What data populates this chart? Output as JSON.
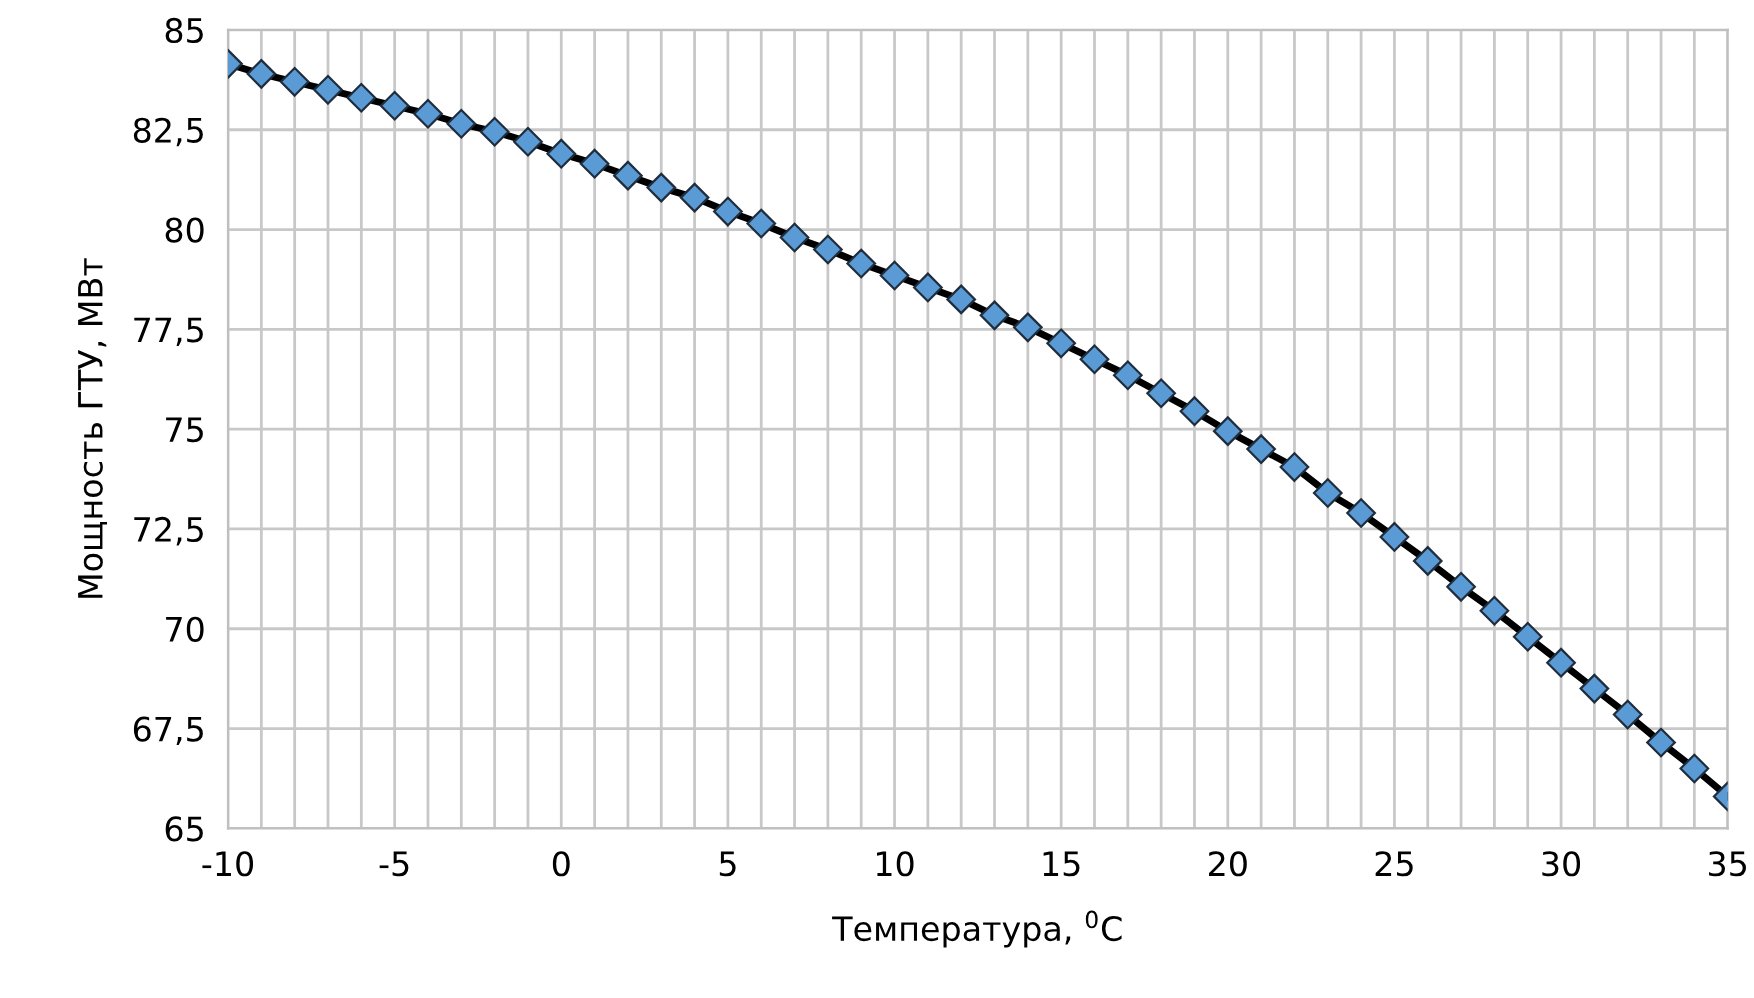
{
  "chart_data": {
    "type": "line",
    "xlabel": "Температура, $^{0}$C",
    "ylabel": "Мощность ГТУ, МВт",
    "x": [
      -10,
      -9,
      -8,
      -7,
      -6,
      -5,
      -4,
      -3,
      -2,
      -1,
      0,
      1,
      2,
      3,
      4,
      5,
      6,
      7,
      8,
      9,
      10,
      11,
      12,
      13,
      14,
      15,
      16,
      17,
      18,
      19,
      20,
      21,
      22,
      23,
      24,
      25,
      26,
      27,
      28,
      29,
      30,
      31,
      32,
      33,
      34,
      35
    ],
    "series": [
      {
        "color": "#5b9bd5",
        "values": [
          84.15,
          83.9,
          83.7,
          83.5,
          83.3,
          83.1,
          82.9,
          82.65,
          82.45,
          82.2,
          81.9,
          81.65,
          81.35,
          81.05,
          80.8,
          80.45,
          80.15,
          79.8,
          79.5,
          79.15,
          78.85,
          78.55,
          78.25,
          77.85,
          77.55,
          77.15,
          76.75,
          76.35,
          75.9,
          75.45,
          74.95,
          74.5,
          74.05,
          73.4,
          72.9,
          72.3,
          71.7,
          71.05,
          70.45,
          69.8,
          69.15,
          68.5,
          67.85,
          67.15,
          66.5,
          65.8
        ]
      }
    ],
    "marker": "diamond",
    "line_style": "solid",
    "grid": true,
    "legend": false,
    "xlim": [
      -10,
      35
    ],
    "xticks": [
      -10,
      {
        "value": -9,
        "label": null
      },
      {
        "value": -8,
        "label": null
      },
      {
        "value": -7,
        "label": null
      },
      {
        "value": -6,
        "label": null
      },
      -5,
      {
        "value": -4,
        "label": null
      },
      {
        "value": -3,
        "label": null
      },
      {
        "value": -2,
        "label": null
      },
      {
        "value": -1,
        "label": null
      },
      0,
      {
        "value": 1,
        "label": null
      },
      {
        "value": 2,
        "label": null
      },
      {
        "value": 3,
        "label": null
      },
      {
        "value": 4,
        "label": null
      },
      5,
      {
        "value": 6,
        "label": null
      },
      {
        "value": 7,
        "label": null
      },
      {
        "value": 8,
        "label": null
      },
      {
        "value": 9,
        "label": null
      },
      10,
      {
        "value": 11,
        "label": null
      },
      {
        "value": 12,
        "label": null
      },
      {
        "value": 13,
        "label": null
      },
      {
        "value": 14,
        "label": null
      },
      15,
      {
        "value": 16,
        "label": null
      },
      {
        "value": 17,
        "label": null
      },
      {
        "value": 18,
        "label": null
      },
      {
        "value": 19,
        "label": null
      },
      20,
      {
        "value": 21,
        "label": null
      },
      {
        "value": 22,
        "label": null
      },
      {
        "value": 23,
        "label": null
      },
      {
        "value": 24,
        "label": null
      },
      25,
      {
        "value": 26,
        "label": null
      },
      {
        "value": 27,
        "label": null
      },
      {
        "value": 28,
        "label": null
      },
      {
        "value": 29,
        "label": null
      },
      30,
      {
        "value": 31,
        "label": null
      },
      {
        "value": 32,
        "label": null
      },
      {
        "value": 33,
        "label": null
      },
      {
        "value": 34,
        "label": null
      },
      35
    ],
    "ylim": [
      65,
      85
    ],
    "yticks": [
      65,
      {
        "value": 67.5,
        "label": "67,5"
      },
      70,
      {
        "value": 72.5,
        "label": "72,5"
      },
      75,
      {
        "value": 77.5,
        "label": "77,5"
      },
      80,
      {
        "value": 82.5,
        "label": "82,5"
      },
      85
    ]
  }
}
